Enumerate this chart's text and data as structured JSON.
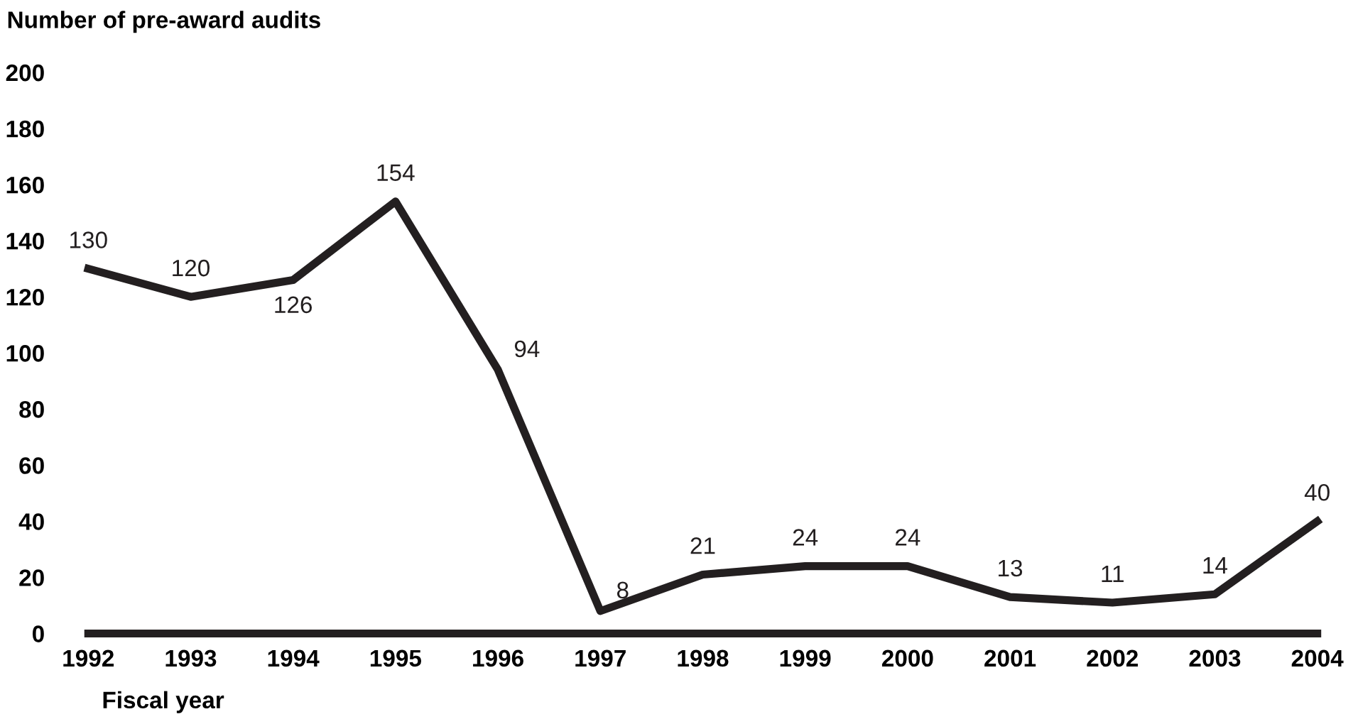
{
  "chart_data": {
    "type": "line",
    "ylabel": "Number of pre-award audits",
    "xlabel": "Fiscal year",
    "x": [
      1992,
      1993,
      1994,
      1995,
      1996,
      1997,
      1998,
      1999,
      2000,
      2001,
      2002,
      2003,
      2004
    ],
    "series": [
      {
        "color": "#231f20",
        "values": [
          130,
          120,
          126,
          154,
          94,
          8,
          21,
          24,
          24,
          13,
          11,
          14,
          40
        ]
      }
    ],
    "xlim": [
      1992,
      2004
    ],
    "xticks": [
      1992,
      1993,
      1994,
      1995,
      1996,
      1997,
      1998,
      1999,
      2000,
      2001,
      2002,
      2003,
      2004
    ],
    "ylim": [
      0,
      200
    ],
    "yticks": [
      0,
      20,
      40,
      60,
      80,
      100,
      120,
      140,
      160,
      180,
      200
    ],
    "data_labels": true,
    "grid": false,
    "legend": false,
    "marker": "none",
    "line_style": "solid"
  }
}
